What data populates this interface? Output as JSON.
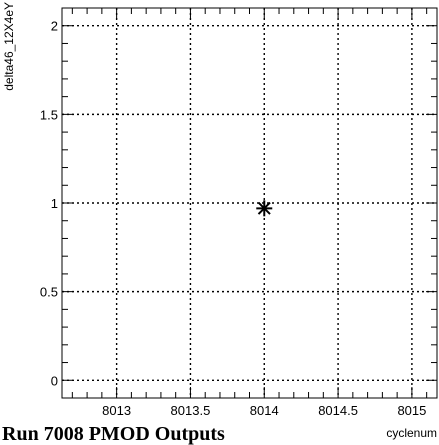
{
  "chart_data": {
    "type": "scatter",
    "xlabel": "cyclenum",
    "ylabel": "delta46_12X4eY",
    "xlim": [
      8012.63,
      8015.17
    ],
    "ylim": [
      -0.1,
      2.1
    ],
    "grid": true,
    "x_ticks": [
      8013,
      8013.5,
      8014,
      8014.5,
      8015
    ],
    "x_tick_labels": [
      "8013",
      "8013.5",
      "8014",
      "8014.5",
      "8015"
    ],
    "y_ticks": [
      0,
      0.5,
      1,
      1.5,
      2
    ],
    "y_tick_labels": [
      "0",
      "0.5",
      "1",
      "1.5",
      "2"
    ],
    "series": [
      {
        "marker": "asterisk",
        "color": "#000000",
        "x": [
          8014
        ],
        "y": [
          0.97
        ]
      }
    ]
  },
  "caption": "Run 7008 PMOD Outputs"
}
